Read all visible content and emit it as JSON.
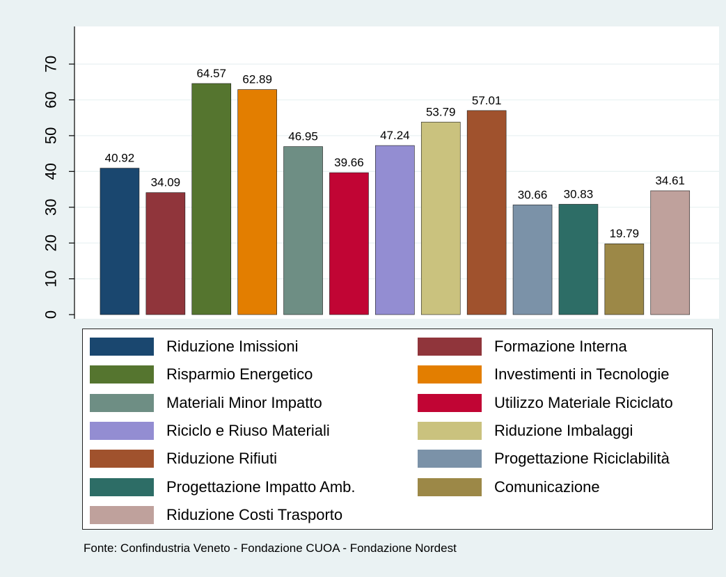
{
  "chart_data": {
    "type": "bar",
    "categories": [
      "Riduzione Imissioni",
      "Formazione Interna",
      "Risparmio Energetico",
      "Investimenti in Tecnologie",
      "Materiali Minor Impatto",
      "Utilizzo Materiale Riciclato",
      "Riciclo e Riuso Materiali",
      "Riduzione Imbalaggi",
      "Riduzione Rifiuti",
      "Progettazione Riciclabilità",
      "Progettazione Impatto Amb.",
      "Comunicazione",
      "Riduzione Costi Trasporto"
    ],
    "values": [
      40.92,
      34.09,
      64.57,
      62.89,
      46.95,
      39.66,
      47.24,
      53.79,
      57.01,
      30.66,
      30.83,
      19.79,
      34.61
    ],
    "value_labels": [
      "40.92",
      "34.09",
      "64.57",
      "62.89",
      "46.95",
      "39.66",
      "47.24",
      "53.79",
      "57.01",
      "30.66",
      "30.83",
      "19.79",
      "34.61"
    ],
    "colors": [
      "#1a476f",
      "#90353b",
      "#55752f",
      "#e37e00",
      "#6e8e84",
      "#c10534",
      "#938dd2",
      "#cac27e",
      "#a0522d",
      "#7b92a8",
      "#2d6d66",
      "#9c8847",
      "#bfa19c"
    ],
    "ylim": [
      0,
      74
    ],
    "yticks": [
      "0",
      "10",
      "20",
      "30",
      "40",
      "50",
      "60",
      "70"
    ],
    "grid": true,
    "legend_position": "bottom"
  },
  "source": "Fonte:  Confindustria Veneto - Fondazione CUOA - Fondazione Nordest"
}
